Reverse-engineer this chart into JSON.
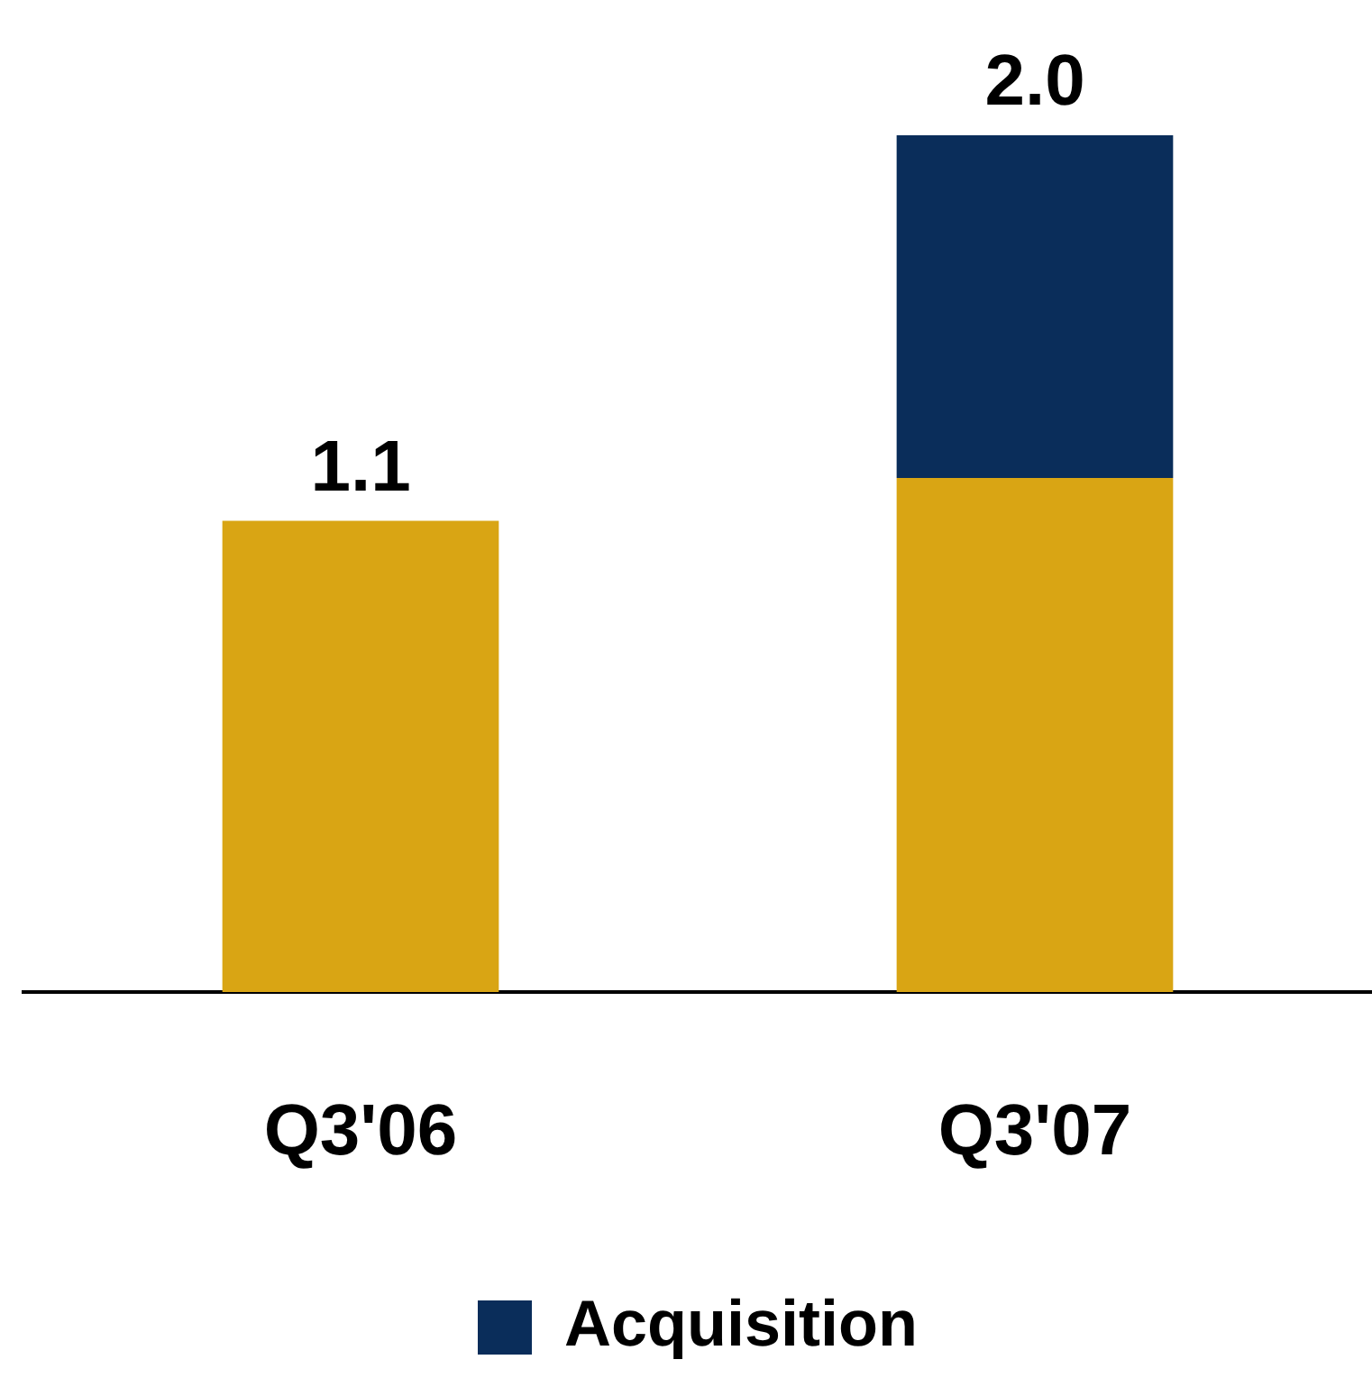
{
  "chart_data": {
    "type": "bar",
    "stacked": true,
    "categories": [
      "Q3'06",
      "Q3'07"
    ],
    "series": [
      {
        "color": "#d9a514",
        "values": [
          1.1,
          1.2
        ],
        "value_labels": [
          "1.1",
          null
        ]
      },
      {
        "name": "Acquisition",
        "color": "#0a2d5a",
        "values": [
          null,
          0.8
        ]
      }
    ],
    "totals": [
      null,
      "2.0"
    ],
    "legend": "bottom",
    "grid": false
  }
}
